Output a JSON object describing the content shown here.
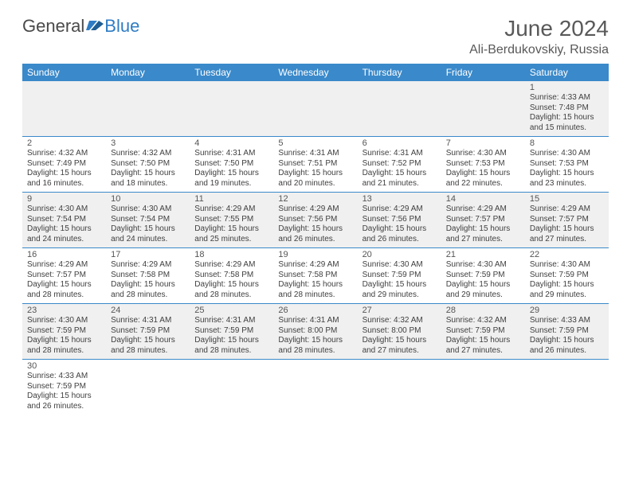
{
  "logo": {
    "text1": "General",
    "text2": "Blue"
  },
  "title": "June 2024",
  "location": "Ali-Berdukovskiy, Russia",
  "colors": {
    "header_bg": "#3a89ca",
    "header_text": "#ffffff",
    "row_alt": "#f0f0f0",
    "border": "#3a89ca",
    "title_color": "#595959",
    "logo_gray": "#4a4a4a",
    "logo_blue": "#2f7cc4"
  },
  "weekdays": [
    "Sunday",
    "Monday",
    "Tuesday",
    "Wednesday",
    "Thursday",
    "Friday",
    "Saturday"
  ],
  "weeks": [
    [
      null,
      null,
      null,
      null,
      null,
      null,
      {
        "n": "1",
        "sr": "4:33 AM",
        "ss": "7:48 PM",
        "dl": "15 hours and 15 minutes."
      }
    ],
    [
      {
        "n": "2",
        "sr": "4:32 AM",
        "ss": "7:49 PM",
        "dl": "15 hours and 16 minutes."
      },
      {
        "n": "3",
        "sr": "4:32 AM",
        "ss": "7:50 PM",
        "dl": "15 hours and 18 minutes."
      },
      {
        "n": "4",
        "sr": "4:31 AM",
        "ss": "7:50 PM",
        "dl": "15 hours and 19 minutes."
      },
      {
        "n": "5",
        "sr": "4:31 AM",
        "ss": "7:51 PM",
        "dl": "15 hours and 20 minutes."
      },
      {
        "n": "6",
        "sr": "4:31 AM",
        "ss": "7:52 PM",
        "dl": "15 hours and 21 minutes."
      },
      {
        "n": "7",
        "sr": "4:30 AM",
        "ss": "7:53 PM",
        "dl": "15 hours and 22 minutes."
      },
      {
        "n": "8",
        "sr": "4:30 AM",
        "ss": "7:53 PM",
        "dl": "15 hours and 23 minutes."
      }
    ],
    [
      {
        "n": "9",
        "sr": "4:30 AM",
        "ss": "7:54 PM",
        "dl": "15 hours and 24 minutes."
      },
      {
        "n": "10",
        "sr": "4:30 AM",
        "ss": "7:54 PM",
        "dl": "15 hours and 24 minutes."
      },
      {
        "n": "11",
        "sr": "4:29 AM",
        "ss": "7:55 PM",
        "dl": "15 hours and 25 minutes."
      },
      {
        "n": "12",
        "sr": "4:29 AM",
        "ss": "7:56 PM",
        "dl": "15 hours and 26 minutes."
      },
      {
        "n": "13",
        "sr": "4:29 AM",
        "ss": "7:56 PM",
        "dl": "15 hours and 26 minutes."
      },
      {
        "n": "14",
        "sr": "4:29 AM",
        "ss": "7:57 PM",
        "dl": "15 hours and 27 minutes."
      },
      {
        "n": "15",
        "sr": "4:29 AM",
        "ss": "7:57 PM",
        "dl": "15 hours and 27 minutes."
      }
    ],
    [
      {
        "n": "16",
        "sr": "4:29 AM",
        "ss": "7:57 PM",
        "dl": "15 hours and 28 minutes."
      },
      {
        "n": "17",
        "sr": "4:29 AM",
        "ss": "7:58 PM",
        "dl": "15 hours and 28 minutes."
      },
      {
        "n": "18",
        "sr": "4:29 AM",
        "ss": "7:58 PM",
        "dl": "15 hours and 28 minutes."
      },
      {
        "n": "19",
        "sr": "4:29 AM",
        "ss": "7:58 PM",
        "dl": "15 hours and 28 minutes."
      },
      {
        "n": "20",
        "sr": "4:30 AM",
        "ss": "7:59 PM",
        "dl": "15 hours and 29 minutes."
      },
      {
        "n": "21",
        "sr": "4:30 AM",
        "ss": "7:59 PM",
        "dl": "15 hours and 29 minutes."
      },
      {
        "n": "22",
        "sr": "4:30 AM",
        "ss": "7:59 PM",
        "dl": "15 hours and 29 minutes."
      }
    ],
    [
      {
        "n": "23",
        "sr": "4:30 AM",
        "ss": "7:59 PM",
        "dl": "15 hours and 28 minutes."
      },
      {
        "n": "24",
        "sr": "4:31 AM",
        "ss": "7:59 PM",
        "dl": "15 hours and 28 minutes."
      },
      {
        "n": "25",
        "sr": "4:31 AM",
        "ss": "7:59 PM",
        "dl": "15 hours and 28 minutes."
      },
      {
        "n": "26",
        "sr": "4:31 AM",
        "ss": "8:00 PM",
        "dl": "15 hours and 28 minutes."
      },
      {
        "n": "27",
        "sr": "4:32 AM",
        "ss": "8:00 PM",
        "dl": "15 hours and 27 minutes."
      },
      {
        "n": "28",
        "sr": "4:32 AM",
        "ss": "7:59 PM",
        "dl": "15 hours and 27 minutes."
      },
      {
        "n": "29",
        "sr": "4:33 AM",
        "ss": "7:59 PM",
        "dl": "15 hours and 26 minutes."
      }
    ],
    [
      {
        "n": "30",
        "sr": "4:33 AM",
        "ss": "7:59 PM",
        "dl": "15 hours and 26 minutes."
      },
      null,
      null,
      null,
      null,
      null,
      null
    ]
  ],
  "labels": {
    "sunrise": "Sunrise: ",
    "sunset": "Sunset: ",
    "daylight": "Daylight: "
  }
}
